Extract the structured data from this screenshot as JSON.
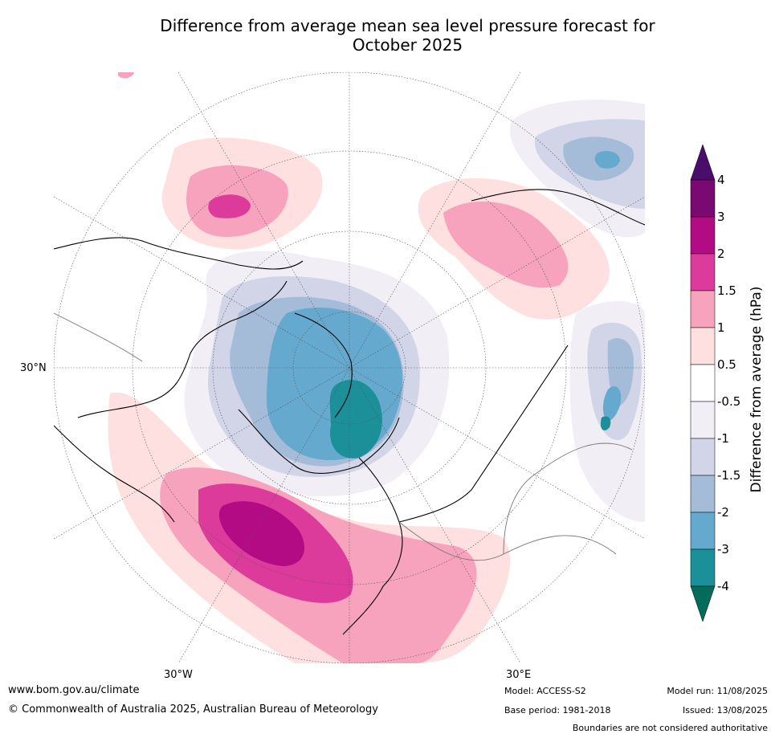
{
  "title_line1": "Difference from average mean sea level pressure forecast for",
  "title_line2": "October 2025",
  "lat_label": "30°N",
  "lon_labels": [
    "30°W",
    "30°E"
  ],
  "colorbar": {
    "title": "Difference from average (hPa)",
    "ticks": [
      "4",
      "3",
      "2",
      "1.5",
      "1",
      "0.5",
      "-0.5",
      "-1",
      "-1.5",
      "-2",
      "-3",
      "-4"
    ],
    "colors": [
      "#4b0d6b",
      "#7a0a72",
      "#b30b83",
      "#dc3b9c",
      "#f7a3bd",
      "#fde0df",
      "#ffffff",
      "#f1eef5",
      "#d2d4e8",
      "#a5bcd8",
      "#66a9cf",
      "#1c9099",
      "#016c59"
    ]
  },
  "footer": {
    "website": "www.bom.gov.au/climate",
    "copyright": "© Commonwealth of Australia 2025, Australian Bureau of Meteorology",
    "model": "Model: ACCESS-S2",
    "base_period": "Base period: 1981-2018",
    "model_run": "Model run: 11/08/2025",
    "issued": "Issued: 13/08/2025",
    "disclaimer": "Boundaries are not considered authoritative"
  }
}
